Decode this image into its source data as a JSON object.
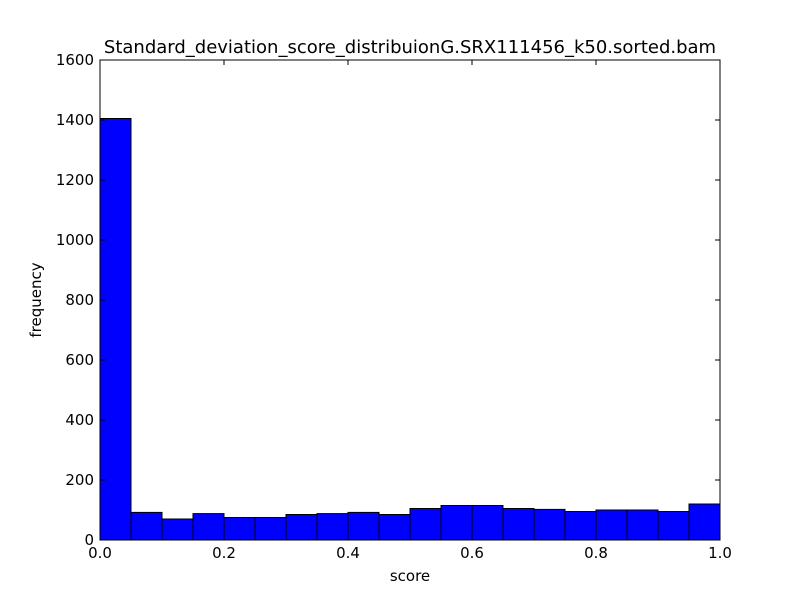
{
  "chart_data": {
    "type": "bar",
    "title": "Standard_deviation_score_distribuionG.SRX111456_k50.sorted.bam",
    "xlabel": "score",
    "ylabel": "frequency",
    "xlim": [
      0.0,
      1.0
    ],
    "ylim": [
      0,
      1600
    ],
    "xticks": [
      "0.0",
      "0.2",
      "0.4",
      "0.6",
      "0.8",
      "1.0"
    ],
    "yticks": [
      "0",
      "200",
      "400",
      "600",
      "800",
      "1000",
      "1200",
      "1400",
      "1600"
    ],
    "bin_edges": [
      0.0,
      0.05,
      0.1,
      0.15,
      0.2,
      0.25,
      0.3,
      0.35,
      0.4,
      0.45,
      0.5,
      0.55,
      0.6,
      0.65,
      0.7,
      0.75,
      0.8,
      0.85,
      0.9,
      0.95,
      1.0
    ],
    "values": [
      1405,
      92,
      70,
      88,
      75,
      75,
      85,
      88,
      92,
      85,
      105,
      115,
      115,
      105,
      102,
      95,
      100,
      100,
      95,
      120
    ],
    "bar_color": "#0000ff",
    "edge_color": "#000000",
    "grid": false,
    "legend": "none"
  }
}
